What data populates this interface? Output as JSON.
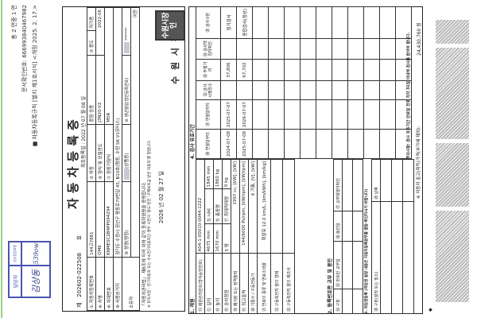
{
  "header": {
    "pages": "총 2 면중 1 면",
    "doc_check_no": "문서확인번호: 666993840467982",
    "form_rule": "■ 자동차등록규칙 [별지 제1호서식] <개정 2025. 2. 17.>"
  },
  "stamp": {
    "col1": "담당자",
    "col2": "성능점검보험",
    "sign1": "김상동",
    "sign2": "539ow",
    "ink_color": "#3a45a8"
  },
  "cert": {
    "no_prefix": "제",
    "no": "202602-022508",
    "no_suffix": "호",
    "title": "자동차등록증",
    "first_reg": "최초등록일 : 2022 년 07 월 08 일",
    "rows": {
      "reg_no_label": "① 자동차등록번호",
      "reg_no": "144고7881",
      "type_label": "② 차종",
      "type": "중형 승용",
      "use_label": "③ 용도",
      "use": "자가용",
      "model_label": "④ 차명",
      "model": "QM6",
      "form_label": "⑤ 형식 및 모델연도",
      "form": "J3N20-V2",
      "year": "2022-06",
      "vin_label": "⑥ 차대번호",
      "vin": "KNMESC2B4PP094294",
      "engine_label": "⑦ 원동기형식",
      "engine": "M5R",
      "base_label": "⑧ 사용본거지",
      "base": "경기도 수원시 권선구 평동로79번길 45, B10호(평동, 수원 SK V1모터스)",
      "owner_label": "소유자",
      "name_label": "⑨ 성명(명칭)",
      "name_suffix": "(상품용)",
      "birth_label": "⑩ 생년월일(법인등록번호)",
      "birth": "******",
      "transfer": "이전"
    },
    "statement": "「자동차관리법」 제8조에 따라 위와 같이 등록하였음을 증명합니다.",
    "notice": "※ 유의사항 : 전기자동차 또는 수소전기자동차인 경우 ③란의 '용도'란은 '구매보조금 받은 자동차'를 말합니다.",
    "date": "2026 년 02 월 27 일",
    "issuer": "수 원 시 장",
    "seal_text": "수원시장인"
  },
  "specs": {
    "section": "1. 제원",
    "mgmt_label": "⑪ 제원관리번호(형식승인번호)",
    "mgmt": "A04-1-00010-0044-1222",
    "length_label": "⑫ 길이",
    "length": "4675 mm",
    "width_label": "⑬ 너비",
    "width": "1845 mm",
    "height_label": "⑭ 높이",
    "height": "1670 mm",
    "gross_label": "⑮ 총중량",
    "gross": "1860 kg",
    "seats_label": "⑯ 승차정원",
    "seats": "5 명",
    "load_label": "⑰ 최대적재량",
    "load": "0 kg",
    "disp_label": "⑱ 배기량 또는 정격출력",
    "disp": "1997 cc, [kW], [kW]",
    "power_label": "⑲ 최고출력",
    "power": "144/6000 Ps/rpm, [kW/rpm], [kW/rpm]",
    "cyl_label": "⑳ 기통수 / 구동전동기",
    "cyl": "4 기통, [V], [kW]",
    "fuel_label": "㉑ 연료의 종류 및 연료소비율",
    "fuel": "휘발유 12.0 km/L, [km/kWh], [km/kg]",
    "battery_label": "㉒ 구동축전지 셀의 형태",
    "battery_maker_label": "㉓ 구동축전지 셀의 제조사"
  },
  "plate": {
    "section": "2. 등록번호판 교부 및 봉인",
    "cols": [
      "㉔ 구분",
      "㉕ 번호판 교부일",
      "㉖ 봉인일",
      "㉗ 교부대행자확인"
    ]
  },
  "mortgage": {
    "section": "3. 저당권등록 (저당권 설정 내용은 자동차등록원부를 열람·확인하시기 바랍니다)",
    "cols": [
      "㉘ 구분(설정 또는 말소)",
      "㉙ 날짜"
    ]
  },
  "inspection": {
    "section": "4. 검사 유효기간",
    "cols": [
      "㉚ 연월일부터",
      "㉛ 연월일까지",
      "㉜ 검사시행장소",
      "㉝ 주행거리",
      "㉞ 검사책임자확인",
      "㉟ 검사구분"
    ],
    "rows": [
      [
        "2024-07-08",
        "2025-07-07",
        "",
        "37,806",
        "",
        "정기검사"
      ],
      [
        "2025-07-08",
        "2026-07-07",
        "",
        "67,702",
        "",
        "종합검사(정상)"
      ]
    ],
    "note": "주의사항: 검사 유효기간 만료일 전후 각각 31일 이내에 검사를 받아야 합니다."
  },
  "footer": {
    "price_label": "※ 자동차 출고(취득)가격(부가세 제외):",
    "price": "24,430,760 원"
  }
}
